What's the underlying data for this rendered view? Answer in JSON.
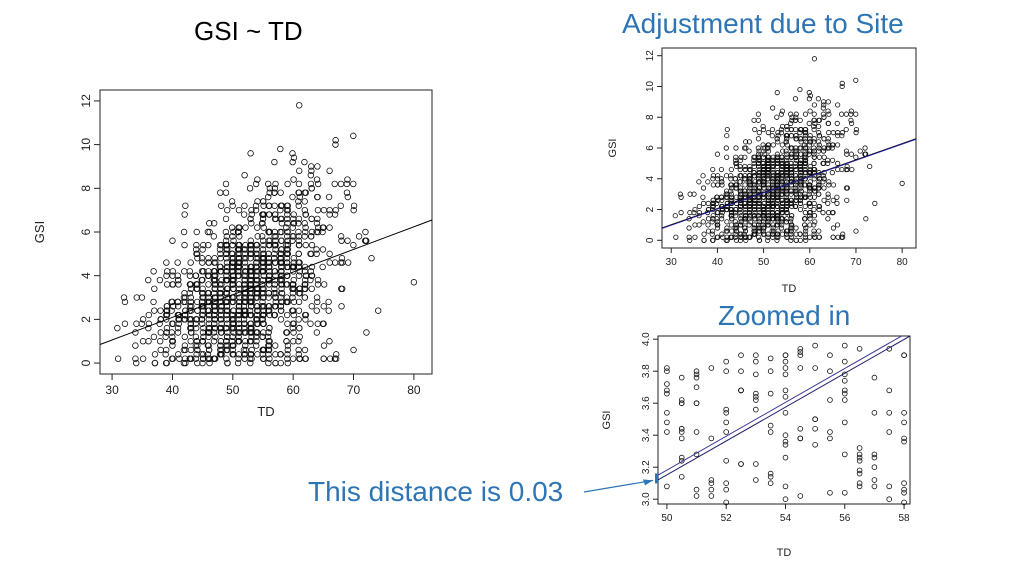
{
  "slide": {
    "title_main": "GSI ~ TD",
    "title_site": "Adjustment due to Site",
    "title_zoom": "Zoomed in",
    "note": "This distance is 0.03",
    "accent_color": "#2E75B6"
  },
  "chart_data": [
    {
      "type": "scatter",
      "title": "GSI ~ TD",
      "xlabel": "TD",
      "ylabel": "GSI",
      "xlim": [
        28,
        83
      ],
      "ylim": [
        -0.5,
        12.5
      ],
      "xticks": [
        30,
        40,
        50,
        60,
        70,
        80
      ],
      "yticks": [
        0,
        2,
        4,
        6,
        8,
        10,
        12
      ],
      "x_range_points": [
        31,
        80
      ],
      "n_points_approx": 1300,
      "lines": [
        {
          "name": "fit",
          "color": "#000000",
          "points": [
            [
              28,
              0.85
            ],
            [
              83,
              6.55
            ]
          ]
        }
      ]
    },
    {
      "type": "scatter",
      "title": "Adjustment due to Site",
      "xlabel": "TD",
      "ylabel": "GSI",
      "xlim": [
        28,
        83
      ],
      "ylim": [
        -0.5,
        12.5
      ],
      "xticks": [
        30,
        40,
        50,
        60,
        70,
        80
      ],
      "yticks": [
        0,
        2,
        4,
        6,
        8,
        10,
        12
      ],
      "x_range_points": [
        31,
        80
      ],
      "n_points_approx": 1300,
      "lines": [
        {
          "name": "fit",
          "color": "#000000",
          "points": [
            [
              28,
              0.8
            ],
            [
              83,
              6.6
            ]
          ]
        },
        {
          "name": "site-adjusted fit",
          "color": "#1f1f9a",
          "points": [
            [
              28,
              0.77
            ],
            [
              83,
              6.57
            ]
          ]
        }
      ]
    },
    {
      "type": "scatter",
      "title": "Zoomed in",
      "xlabel": "TD",
      "ylabel": "GSI",
      "xlim": [
        49.7,
        58.2
      ],
      "ylim": [
        2.97,
        4.02
      ],
      "xticks": [
        50,
        52,
        54,
        56,
        58
      ],
      "yticks": [
        3.0,
        3.2,
        3.4,
        3.6,
        3.8,
        4.0
      ],
      "lines": [
        {
          "name": "fit",
          "color": "#3b3b9a",
          "points": [
            [
              49.7,
              3.15
            ],
            [
              58.2,
              4.05
            ]
          ]
        },
        {
          "name": "site-adjusted fit",
          "color": "#1f1f6a",
          "points": [
            [
              49.7,
              3.12
            ],
            [
              58.2,
              4.02
            ]
          ]
        }
      ],
      "annotation": {
        "text": "This distance is 0.03",
        "value": 0.03
      }
    }
  ]
}
